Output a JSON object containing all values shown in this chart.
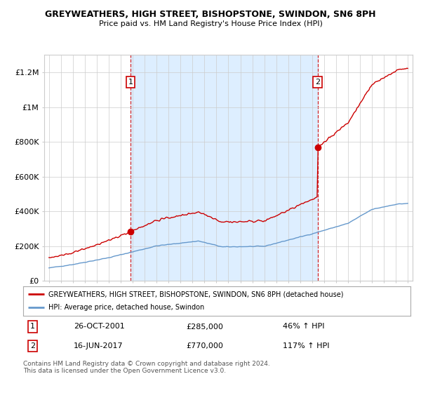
{
  "title": "GREYWEATHERS, HIGH STREET, BISHOPSTONE, SWINDON, SN6 8PH",
  "subtitle": "Price paid vs. HM Land Registry's House Price Index (HPI)",
  "legend_line1": "GREYWEATHERS, HIGH STREET, BISHOPSTONE, SWINDON, SN6 8PH (detached house)",
  "legend_line2": "HPI: Average price, detached house, Swindon",
  "transaction1_date": "26-OCT-2001",
  "transaction1_price": "£285,000",
  "transaction1_hpi": "46% ↑ HPI",
  "transaction2_date": "16-JUN-2017",
  "transaction2_price": "£770,000",
  "transaction2_hpi": "117% ↑ HPI",
  "footer": "Contains HM Land Registry data © Crown copyright and database right 2024.\nThis data is licensed under the Open Government Licence v3.0.",
  "red_line_color": "#cc0000",
  "blue_line_color": "#6699cc",
  "shade_color": "#ddeeff",
  "background_color": "#ffffff",
  "grid_color": "#cccccc",
  "ylim": [
    0,
    1300000
  ],
  "yticks": [
    0,
    200000,
    400000,
    600000,
    800000,
    1000000,
    1200000
  ],
  "ytick_labels": [
    "£0",
    "£200K",
    "£400K",
    "£600K",
    "£800K",
    "£1M",
    "£1.2M"
  ],
  "transaction1_x": 2001.82,
  "transaction2_x": 2017.46,
  "transaction1_price_val": 285000,
  "transaction2_price_val": 770000
}
